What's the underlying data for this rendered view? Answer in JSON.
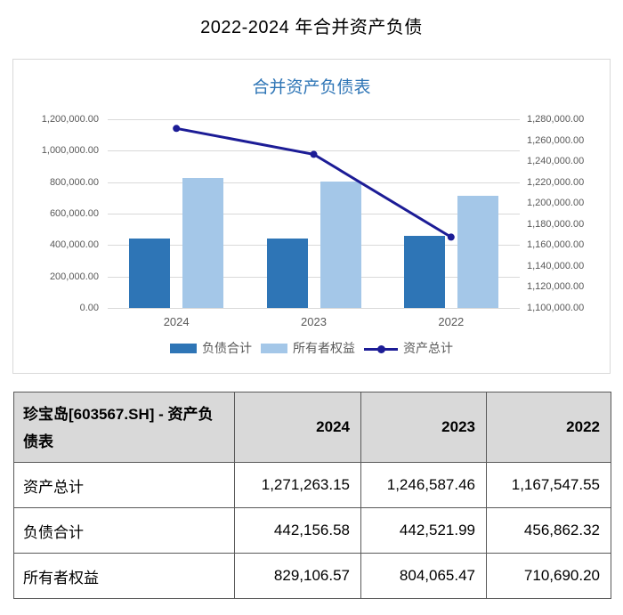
{
  "page": {
    "title": "2022-2024 年合并资产负债"
  },
  "chart": {
    "title": "合并资产负债表",
    "colors": {
      "title": "#2e75b6",
      "bar_liabilities": "#2e75b6",
      "bar_equity": "#a4c7e8",
      "line_assets": "#1c1c96",
      "grid": "#d9d9d9",
      "axis_text": "#595959"
    }
  },
  "chart_data": {
    "type": "bar",
    "title": "合并资产负债表",
    "categories": [
      "2024",
      "2023",
      "2022"
    ],
    "series": [
      {
        "name": "负债合计",
        "type": "bar",
        "axis": "left",
        "color": "#2e75b6",
        "values": [
          442156.58,
          442521.99,
          456862.32
        ]
      },
      {
        "name": "所有者权益",
        "type": "bar",
        "axis": "left",
        "color": "#a4c7e8",
        "values": [
          829106.57,
          804065.47,
          710690.2
        ]
      },
      {
        "name": "资产总计",
        "type": "line",
        "axis": "right",
        "color": "#1c1c96",
        "values": [
          1271263.15,
          1246587.46,
          1167547.55
        ]
      }
    ],
    "left_axis": {
      "min": 0,
      "max": 1200000,
      "ticks": [
        "1,200,000.00",
        "1,000,000.00",
        "800,000.00",
        "600,000.00",
        "400,000.00",
        "200,000.00",
        "0.00"
      ]
    },
    "right_axis": {
      "min": 1100000,
      "max": 1280000,
      "ticks": [
        "1,280,000.00",
        "1,260,000.00",
        "1,240,000.00",
        "1,220,000.00",
        "1,200,000.00",
        "1,180,000.00",
        "1,160,000.00",
        "1,140,000.00",
        "1,120,000.00",
        "1,100,000.00"
      ]
    },
    "grid": true,
    "legend_position": "bottom"
  },
  "table": {
    "header": [
      "珍宝岛[603567.SH] - 资产负债表",
      "2024",
      "2023",
      "2022"
    ],
    "rows": [
      [
        "资产总计",
        "1,271,263.15",
        "1,246,587.46",
        "1,167,547.55"
      ],
      [
        "负债合计",
        "442,156.58",
        "442,521.99",
        "456,862.32"
      ],
      [
        "所有者权益",
        "829,106.57",
        "804,065.47",
        "710,690.20"
      ]
    ]
  }
}
